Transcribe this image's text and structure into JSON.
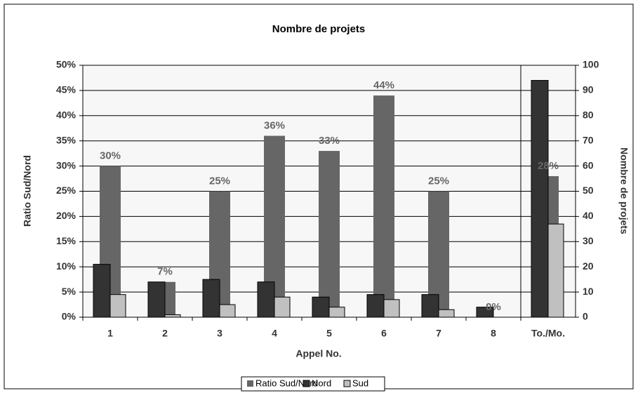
{
  "chart_data": {
    "type": "bar",
    "title": "Nombre de projets",
    "xlabel": "Appel No.",
    "ylabel": "Ratio Sud/Nord",
    "y2label": "Nombre de projets",
    "categories": [
      "1",
      "2",
      "3",
      "4",
      "5",
      "6",
      "7",
      "8",
      "To./Mo."
    ],
    "series": [
      {
        "name": "Ratio Sud/Nord",
        "color": "#666666",
        "values": [
          30,
          7,
          25,
          36,
          33,
          44,
          25,
          0,
          28
        ],
        "value_labels": [
          "30%",
          "7%",
          "25%",
          "36%",
          "33%",
          "44%",
          "25%",
          "0%",
          "28%"
        ]
      },
      {
        "name": "Nord",
        "color": "#333333",
        "axis": "y2",
        "values": [
          21,
          14,
          15,
          14,
          8,
          9,
          9,
          4,
          94
        ]
      },
      {
        "name": "Sud",
        "color": "#c0c0c0",
        "axis": "y2",
        "values": [
          9,
          1,
          5,
          8,
          4,
          7,
          3,
          0,
          37
        ]
      }
    ],
    "ylim": [
      0,
      50
    ],
    "yticks": [
      {
        "value": 0,
        "label": "0%"
      },
      {
        "value": 5,
        "label": "5%"
      },
      {
        "value": 10,
        "label": "10%"
      },
      {
        "value": 15,
        "label": "15%"
      },
      {
        "value": 20,
        "label": "20%"
      },
      {
        "value": 25,
        "label": "25%"
      },
      {
        "value": 30,
        "label": "30%"
      },
      {
        "value": 35,
        "label": "35%"
      },
      {
        "value": 40,
        "label": "40%"
      },
      {
        "value": 45,
        "label": "45%"
      },
      {
        "value": 50,
        "label": "50%"
      }
    ],
    "y2lim": [
      0,
      100
    ],
    "y2ticks": [
      0,
      10,
      20,
      30,
      40,
      50,
      60,
      70,
      80,
      90,
      100
    ],
    "grid": true,
    "legend": "bottom"
  }
}
